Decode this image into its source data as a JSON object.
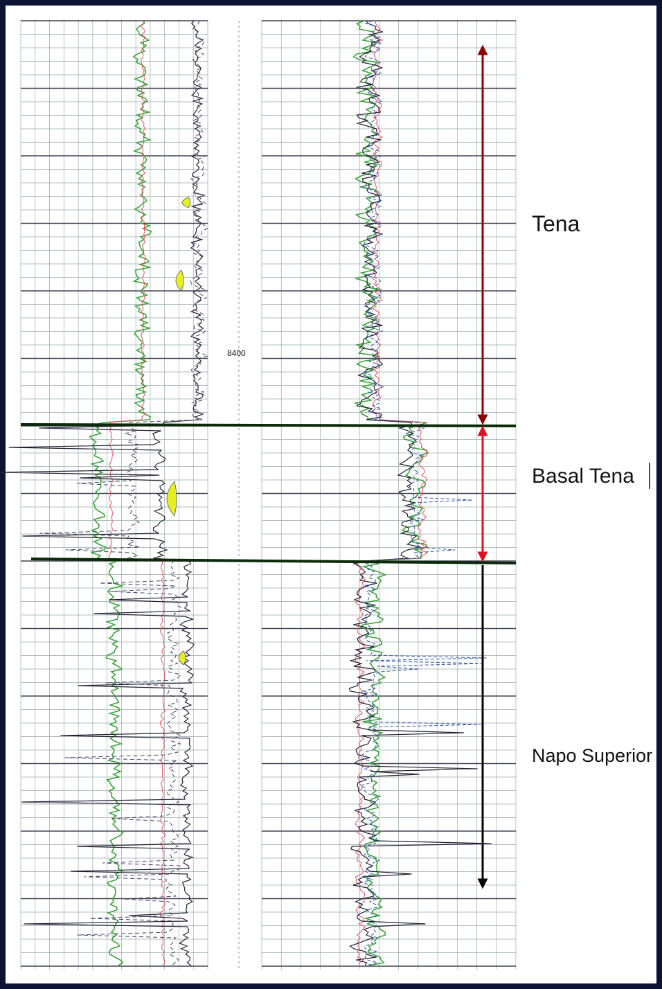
{
  "depth_label": "8400",
  "formations": [
    {
      "label": "Tena"
    },
    {
      "label": "Basal Tena"
    },
    {
      "label": "Napo Superior"
    }
  ]
}
